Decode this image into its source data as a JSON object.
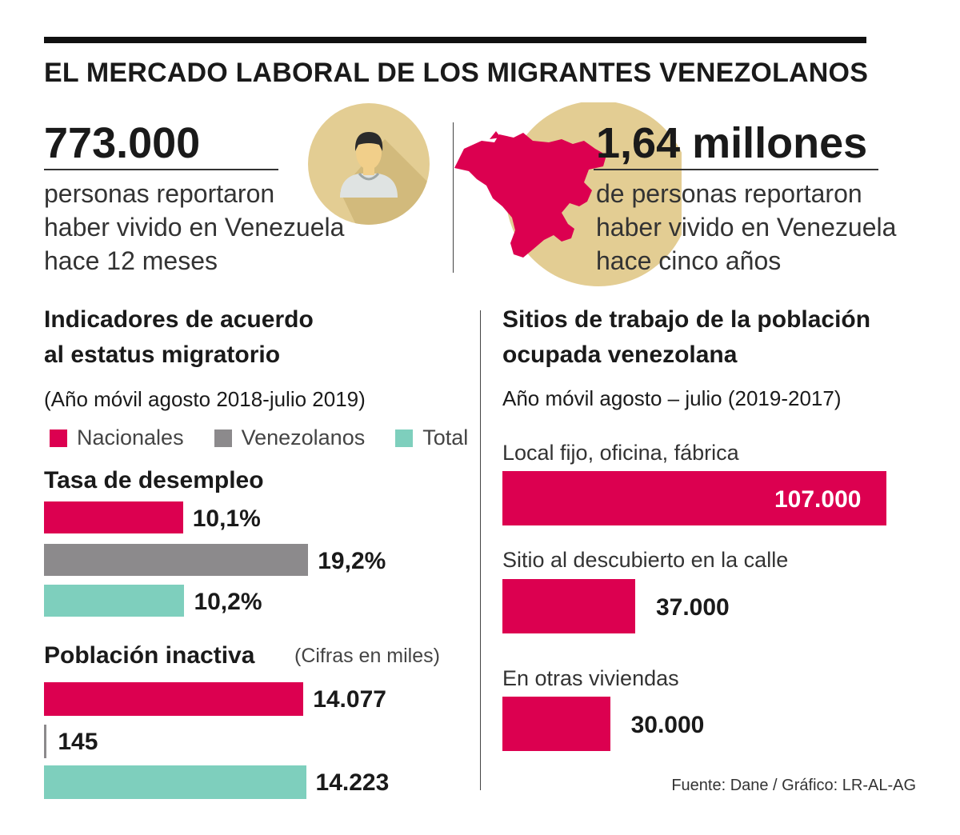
{
  "title": "EL MERCADO LABORAL DE LOS MIGRANTES VENEZOLANOS",
  "stat_left": {
    "number": "773.000",
    "desc_lines": [
      "personas reportaron",
      "haber vivido en Venezuela",
      "hace 12 meses"
    ]
  },
  "stat_right": {
    "number": "1,64 millones",
    "desc_lines": [
      "de personas reportaron",
      "haber vivido en Venezuela",
      "hace cinco años"
    ]
  },
  "left_panel": {
    "heading_lines": [
      "Indicadores de acuerdo",
      "al estatus migratorio"
    ],
    "subtitle": "(Año móvil agosto 2018-julio 2019)",
    "legend": [
      {
        "label": "Nacionales",
        "color": "#dc0050"
      },
      {
        "label": "Venezolanos",
        "color": "#8c8a8c"
      },
      {
        "label": "Total",
        "color": "#7ecfbd"
      }
    ]
  },
  "right_panel": {
    "heading_lines": [
      "Sitios de trabajo de la población",
      "ocupada venezolana"
    ],
    "subtitle": "Año móvil agosto – julio (2019-2017)"
  },
  "source": "Fuente: Dane / Gráfico: LR-AL-AG",
  "icons": {
    "person": "person-icon",
    "map": "venezuela-map-icon"
  },
  "colors": {
    "accent": "#dc0050",
    "gray": "#8c8a8c",
    "teal": "#7ecfbd",
    "circle": "#e3cd93"
  },
  "chart_data": [
    {
      "type": "bar",
      "orientation": "horizontal",
      "title": "Tasa de desempleo",
      "unit": "%",
      "categories": [
        "Nacionales",
        "Venezolanos",
        "Total"
      ],
      "values": [
        10.1,
        19.2,
        10.2
      ],
      "labels": [
        "10,1%",
        "19,2%",
        "10,2%"
      ],
      "colors": [
        "#dc0050",
        "#8c8a8c",
        "#7ecfbd"
      ]
    },
    {
      "type": "bar",
      "orientation": "horizontal",
      "title": "Población inactiva",
      "note": "(Cifras en miles)",
      "categories": [
        "Nacionales",
        "Venezolanos",
        "Total"
      ],
      "values": [
        14077,
        145,
        14223
      ],
      "labels": [
        "14.077",
        "145",
        "14.223"
      ],
      "colors": [
        "#dc0050",
        "#8c8a8c",
        "#7ecfbd"
      ]
    },
    {
      "type": "bar",
      "orientation": "horizontal",
      "title": "Sitios de trabajo de la población ocupada venezolana",
      "categories": [
        "Local fijo, oficina, fábrica",
        "Sitio al descubierto en la calle",
        "En otras viviendas"
      ],
      "values": [
        107000,
        37000,
        30000
      ],
      "labels": [
        "107.000",
        "37.000",
        "30.000"
      ],
      "colors": [
        "#dc0050",
        "#dc0050",
        "#dc0050"
      ]
    }
  ]
}
